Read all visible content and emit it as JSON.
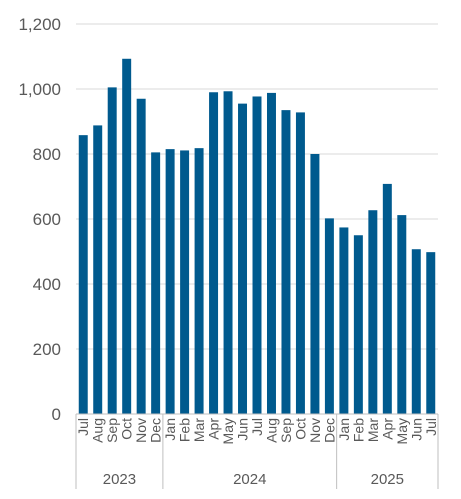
{
  "chart_data": {
    "type": "bar",
    "title": "",
    "xlabel": "",
    "ylabel": "",
    "ylim": [
      0,
      1200
    ],
    "yticks": [
      0,
      200,
      400,
      600,
      800,
      1000,
      1200
    ],
    "ytick_labels": [
      "0",
      "200",
      "400",
      "600",
      "800",
      "1,000",
      "1,200"
    ],
    "grid": true,
    "legend": "none",
    "bar_color": "#005a8e",
    "categories": [
      "Jul",
      "Aug",
      "Sep",
      "Oct",
      "Nov",
      "Dec",
      "Jan",
      "Feb",
      "Mar",
      "Apr",
      "May",
      "Jun",
      "Jul",
      "Aug",
      "Sep",
      "Oct",
      "Nov",
      "Dec",
      "Jan",
      "Feb",
      "Mar",
      "Apr",
      "May",
      "Jun",
      "Jul"
    ],
    "values": [
      858,
      888,
      1005,
      1093,
      970,
      805,
      815,
      811,
      818,
      990,
      993,
      955,
      977,
      988,
      935,
      928,
      800,
      602,
      574,
      550,
      627,
      708,
      612,
      507,
      498
    ],
    "year_groups": [
      {
        "label": "2023",
        "count": 6
      },
      {
        "label": "2024",
        "count": 12
      },
      {
        "label": "2025",
        "count": 7
      }
    ]
  }
}
